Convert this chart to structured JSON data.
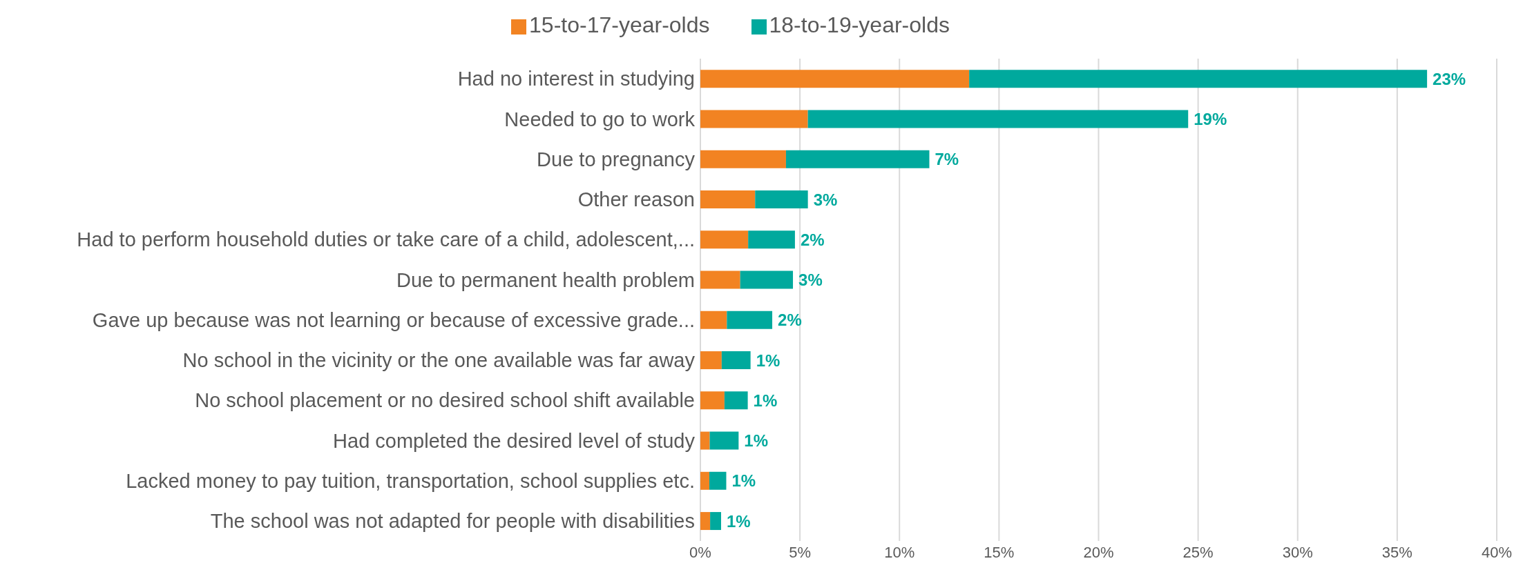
{
  "chart_data": {
    "type": "bar",
    "orientation": "horizontal",
    "stacked": true,
    "categories": [
      "Had no interest in studying",
      "Needed to go to work",
      "Due to pregnancy",
      "Other reason",
      "Had to perform household duties or take care of a child, adolescent,...",
      "Due to permanent health problem",
      "Gave up because was not learning or because of excessive grade...",
      "No school in the vicinity or the one available was far away",
      "No school placement or no desired school shift available",
      "Had completed the desired level of study",
      "Lacked money to pay tuition, transportation, school supplies etc.",
      "The school was not adapted for people with disabilities"
    ],
    "series": [
      {
        "name": "15-to-17-year-olds",
        "color": "#f28322",
        "values": [
          13.5,
          5.4,
          4.3,
          2.75,
          2.4,
          2.0,
          1.33,
          1.07,
          1.21,
          0.47,
          0.45,
          0.49
        ]
      },
      {
        "name": "18-to-19-year-olds",
        "color": "#00a99d",
        "values": [
          23.0,
          19.1,
          7.2,
          2.65,
          2.35,
          2.65,
          2.28,
          1.45,
          1.17,
          1.45,
          0.85,
          0.55
        ],
        "value_labels": [
          "23%",
          "19%",
          "7%",
          "3%",
          "2%",
          "3%",
          "2%",
          "1%",
          "1%",
          "1%",
          "1%",
          "1%"
        ]
      }
    ],
    "xlim": [
      0,
      40
    ],
    "xticks": [
      {
        "value": 0,
        "label": "0%"
      },
      {
        "value": 5,
        "label": "5%"
      },
      {
        "value": 10,
        "label": "10%"
      },
      {
        "value": 15,
        "label": "15%"
      },
      {
        "value": 20,
        "label": "20%"
      },
      {
        "value": 25,
        "label": "25%"
      },
      {
        "value": 30,
        "label": "30%"
      },
      {
        "value": 35,
        "label": "35%"
      },
      {
        "value": 40,
        "label": "40%"
      }
    ],
    "grid": "x",
    "legend": "top"
  }
}
